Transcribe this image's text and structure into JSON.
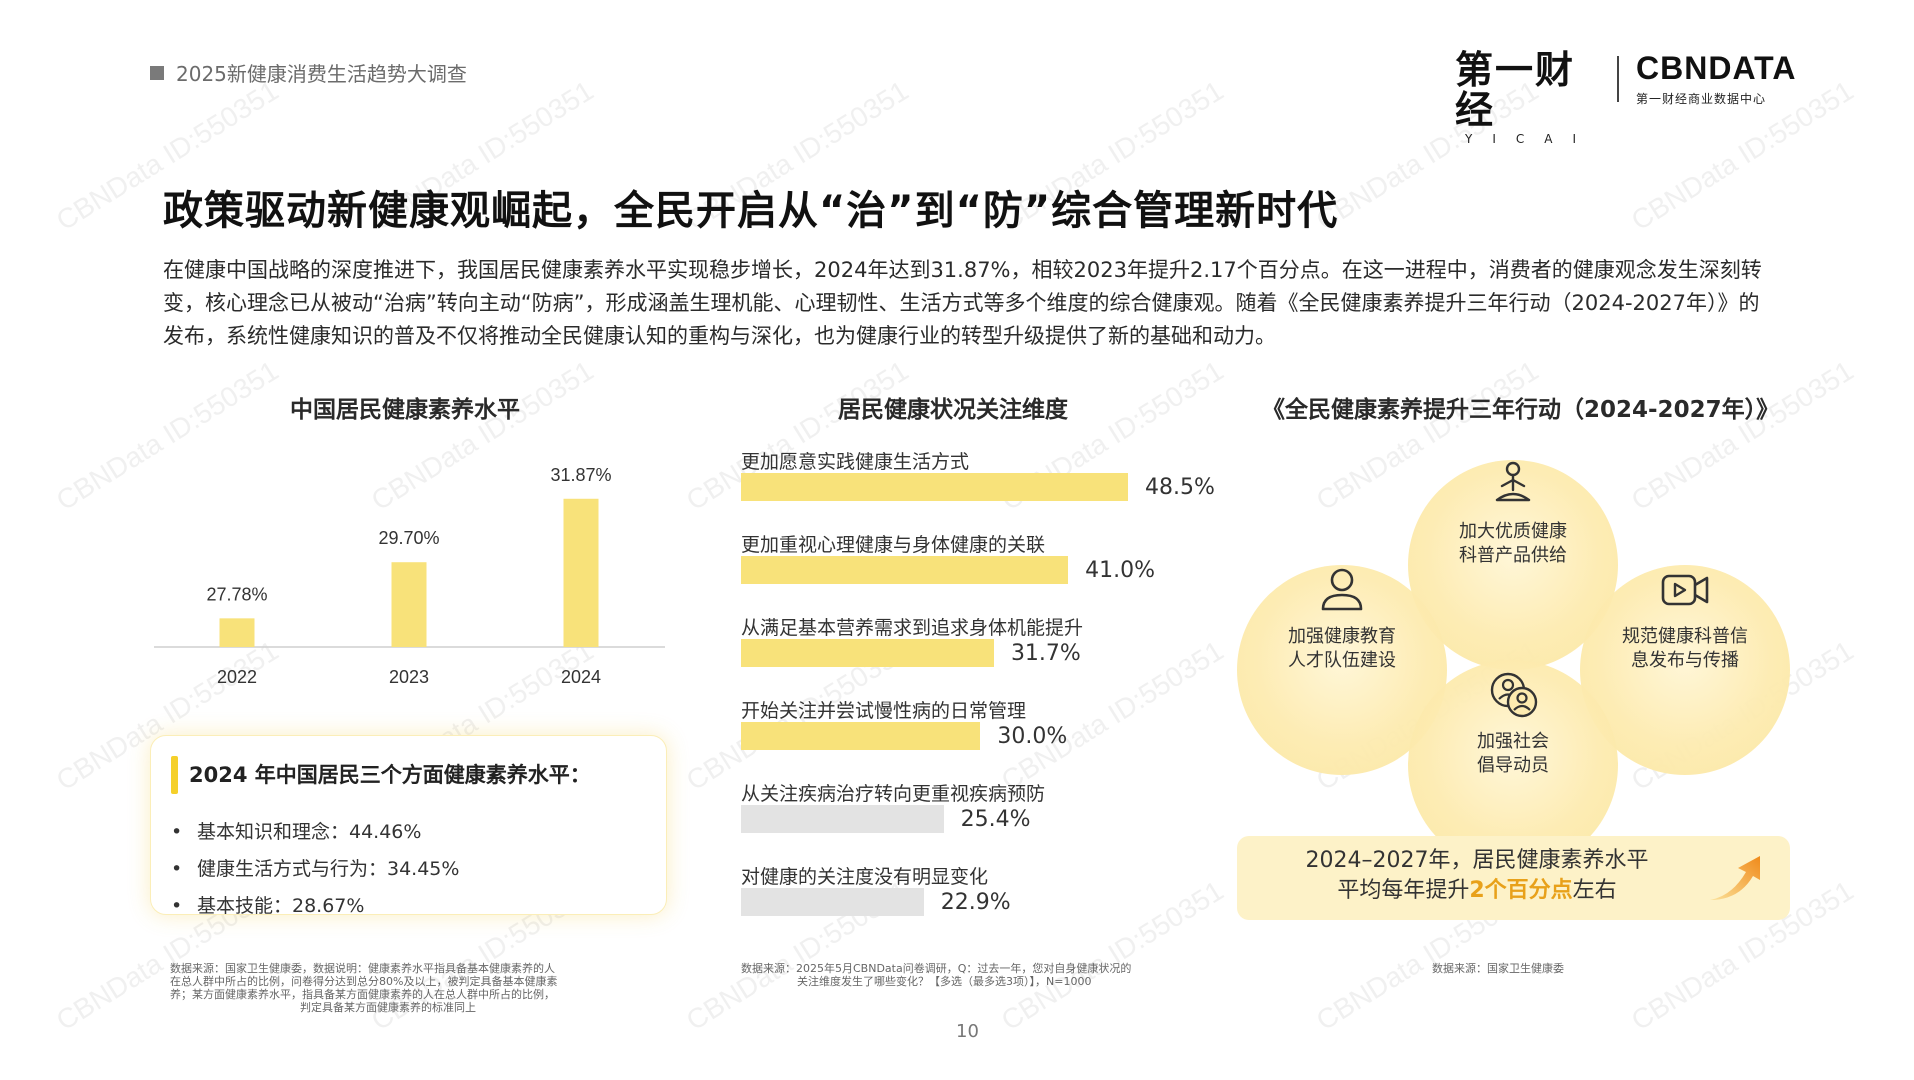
{
  "header": {
    "report_title": "2025新健康消费生活趋势大调查"
  },
  "logos": {
    "yicai_main": "第一财经",
    "yicai_sub": "YICAI",
    "cbn_main": "CBNDATA",
    "cbn_sub": "第一财经商业数据中心"
  },
  "page_title": "政策驱动新健康观崛起，全民开启从“治”到“防”综合管理新时代",
  "intro": "在健康中国战略的深度推进下，我国居民健康素养水平实现稳步增长，2024年达到31.87%，相较2023年提升2.17个百分点。在这一进程中，消费者的健康观念发生深刻转变，核心理念已从被动“治病”转向主动“防病”，形成涵盖生理机能、心理韧性、生活方式等多个维度的综合健康观。随着《全民健康素养提升三年行动（2024-2027年）》的发布，系统性健康知识的普及不仅将推动全民健康认知的重构与深化，也为健康行业的转型升级提供了新的基础和动力。",
  "colors": {
    "accent_yellow": "#f8e27a",
    "bar_gray": "#e3e3e3",
    "highlight_orange": "#e8a11a"
  },
  "chart_data": [
    {
      "type": "bar",
      "title": "中国居民健康素养水平",
      "categories": [
        "2022",
        "2023",
        "2024"
      ],
      "values": [
        27.78,
        29.7,
        31.87
      ],
      "data_labels": [
        "27.78%",
        "29.70%",
        "31.87%"
      ],
      "ylim": [
        26.8,
        32.5
      ],
      "xlabel": "",
      "ylabel": ""
    },
    {
      "type": "bar",
      "orientation": "horizontal",
      "title": "居民健康状况关注维度",
      "categories": [
        "更加愿意实践健康生活方式",
        "更加重视心理健康与身体健康的关联",
        "从满足基本营养需求到追求身体机能提升",
        "开始关注并尝试慢性病的日常管理",
        "从关注疾病治疗转向更重视疾病预防",
        "对健康的关注度没有明显变化"
      ],
      "values": [
        48.5,
        41.0,
        31.7,
        30.0,
        25.4,
        22.9
      ],
      "data_labels": [
        "48.5%",
        "41.0%",
        "31.7%",
        "30.0%",
        "25.4%",
        "22.9%"
      ],
      "highlighted": [
        true,
        true,
        true,
        true,
        false,
        false
      ],
      "xlim": [
        0,
        50
      ]
    }
  ],
  "info_box": {
    "title": "2024 年中国居民三个方面健康素养水平：",
    "items": [
      "基本知识和理念：44.46%",
      "健康生活方式与行为：34.45%",
      "基本技能：28.67%"
    ]
  },
  "action_plan": {
    "title": "《全民健康素养提升三年行动（2024-2027年）》",
    "circles": [
      {
        "icon": "meditation-icon",
        "line1": "加大优质健康",
        "line2": "科普产品供给"
      },
      {
        "icon": "user-icon",
        "line1": "加强健康教育",
        "line2": "人才队伍建设"
      },
      {
        "icon": "video-icon",
        "line1": "规范健康科普信",
        "line2": "息发布与传播"
      },
      {
        "icon": "community-icon",
        "line1": "加强社会",
        "line2": "倡导动员"
      }
    ],
    "highlight_line1": "2024–2027年，居民健康素养水平",
    "highlight_pre": "平均每年提升",
    "highlight_em": "2个百分点",
    "highlight_post": "左右"
  },
  "sources": {
    "left": [
      "数据来源：国家卫生健康委，数据说明：健康素养水平指具备基本健康素养的人",
      "在总人群中所占的比例，问卷得分达到总分80%及以上，被判定具备基本健康素",
      "养；某方面健康素养水平，指具备某方面健康素养的人在总人群中所占的比例，",
      "判定具备某方面健康素养的标准同上"
    ],
    "middle": [
      "数据来源：2025年5月CBNData问卷调研，Q：过去一年，您对自身健康状况的",
      "关注维度发生了哪些变化？【多选（最多选3项）】，N=1000"
    ],
    "right": "数据来源：国家卫生健康委"
  },
  "page_number": "10",
  "watermark": "CBNData ID:550351"
}
